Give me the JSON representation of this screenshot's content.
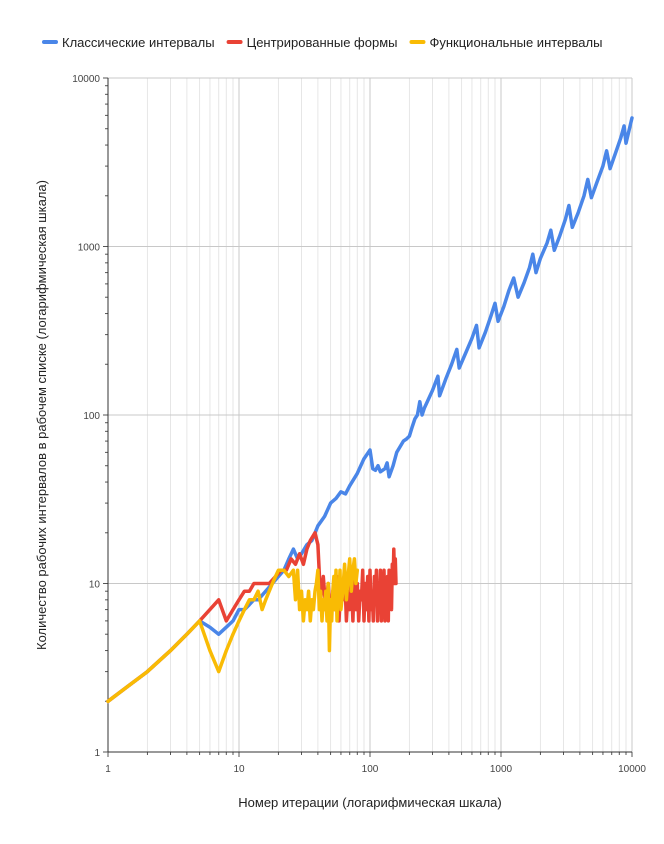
{
  "chart_data": {
    "type": "line",
    "title": "",
    "xlabel": "Номер итерации (логарифмическая шкала)",
    "ylabel": "Количество рабочих интервалов в рабочем списке (логарифмическая шкала)",
    "x_scale": "log",
    "y_scale": "log",
    "xlim": [
      1,
      10000
    ],
    "ylim": [
      1,
      10000
    ],
    "x_ticks": [
      "1",
      "10",
      "100",
      "1000",
      "10000"
    ],
    "y_ticks": [
      "1",
      "10",
      "100",
      "1000",
      "10000"
    ],
    "grid": true,
    "legend_position": "top",
    "series": [
      {
        "name": "Классические интервалы",
        "color": "#4a86e8",
        "points": [
          [
            1,
            2
          ],
          [
            2,
            3
          ],
          [
            3,
            4
          ],
          [
            4,
            5
          ],
          [
            5,
            6
          ],
          [
            6,
            5.5
          ],
          [
            7,
            5
          ],
          [
            8,
            5.5
          ],
          [
            9,
            6
          ],
          [
            10,
            7
          ],
          [
            11,
            7
          ],
          [
            12,
            7.5
          ],
          [
            13,
            8
          ],
          [
            14,
            8
          ],
          [
            16,
            9
          ],
          [
            18,
            10
          ],
          [
            20,
            11
          ],
          [
            22,
            12
          ],
          [
            24,
            14
          ],
          [
            26,
            16
          ],
          [
            28,
            14
          ],
          [
            30,
            15
          ],
          [
            33,
            17
          ],
          [
            36,
            18
          ],
          [
            40,
            22
          ],
          [
            45,
            25
          ],
          [
            50,
            30
          ],
          [
            55,
            32
          ],
          [
            60,
            35
          ],
          [
            65,
            34
          ],
          [
            70,
            38
          ],
          [
            80,
            45
          ],
          [
            90,
            55
          ],
          [
            100,
            62
          ],
          [
            105,
            48
          ],
          [
            110,
            47
          ],
          [
            115,
            50
          ],
          [
            120,
            46
          ],
          [
            130,
            48
          ],
          [
            135,
            52
          ],
          [
            140,
            43
          ],
          [
            150,
            50
          ],
          [
            160,
            60
          ],
          [
            170,
            65
          ],
          [
            180,
            70
          ],
          [
            190,
            72
          ],
          [
            200,
            75
          ],
          [
            210,
            85
          ],
          [
            220,
            95
          ],
          [
            230,
            100
          ],
          [
            240,
            120
          ],
          [
            250,
            100
          ],
          [
            260,
            110
          ],
          [
            300,
            140
          ],
          [
            330,
            170
          ],
          [
            340,
            130
          ],
          [
            380,
            165
          ],
          [
            420,
            200
          ],
          [
            460,
            245
          ],
          [
            480,
            190
          ],
          [
            540,
            235
          ],
          [
            600,
            285
          ],
          [
            650,
            340
          ],
          [
            680,
            250
          ],
          [
            760,
            310
          ],
          [
            840,
            390
          ],
          [
            900,
            460
          ],
          [
            950,
            360
          ],
          [
            1050,
            440
          ],
          [
            1150,
            550
          ],
          [
            1250,
            650
          ],
          [
            1350,
            500
          ],
          [
            1500,
            610
          ],
          [
            1650,
            750
          ],
          [
            1750,
            900
          ],
          [
            1850,
            700
          ],
          [
            2000,
            850
          ],
          [
            2250,
            1050
          ],
          [
            2400,
            1250
          ],
          [
            2550,
            950
          ],
          [
            2800,
            1150
          ],
          [
            3100,
            1450
          ],
          [
            3300,
            1750
          ],
          [
            3500,
            1300
          ],
          [
            3900,
            1600
          ],
          [
            4300,
            2000
          ],
          [
            4600,
            2500
          ],
          [
            4900,
            1950
          ],
          [
            5400,
            2400
          ],
          [
            6000,
            3000
          ],
          [
            6400,
            3700
          ],
          [
            6800,
            2900
          ],
          [
            7500,
            3600
          ],
          [
            8200,
            4400
          ],
          [
            8700,
            5200
          ],
          [
            9000,
            4100
          ],
          [
            10000,
            5800
          ]
        ]
      },
      {
        "name": "Центрированные формы",
        "color": "#e94235",
        "points": [
          [
            1,
            2
          ],
          [
            2,
            3
          ],
          [
            3,
            4
          ],
          [
            4,
            5
          ],
          [
            5,
            6
          ],
          [
            6,
            7
          ],
          [
            7,
            8
          ],
          [
            8,
            6
          ],
          [
            9,
            7
          ],
          [
            10,
            8
          ],
          [
            11,
            9
          ],
          [
            12,
            9
          ],
          [
            13,
            10
          ],
          [
            15,
            10
          ],
          [
            17,
            10
          ],
          [
            19,
            11
          ],
          [
            21,
            12
          ],
          [
            23,
            12
          ],
          [
            25,
            14
          ],
          [
            27,
            13
          ],
          [
            29,
            15
          ],
          [
            31,
            13
          ],
          [
            33,
            16
          ],
          [
            35,
            18
          ],
          [
            38,
            20
          ],
          [
            40,
            17
          ],
          [
            42,
            8
          ],
          [
            44,
            11
          ],
          [
            46,
            7
          ],
          [
            48,
            10
          ],
          [
            50,
            6
          ],
          [
            52,
            9
          ],
          [
            54,
            7
          ],
          [
            56,
            11
          ],
          [
            58,
            6
          ],
          [
            60,
            10
          ],
          [
            62,
            8
          ],
          [
            64,
            12
          ],
          [
            66,
            6
          ],
          [
            68,
            9
          ],
          [
            70,
            7
          ],
          [
            72,
            11
          ],
          [
            74,
            6
          ],
          [
            76,
            12
          ],
          [
            78,
            7
          ],
          [
            80,
            10
          ],
          [
            82,
            6
          ],
          [
            84,
            9
          ],
          [
            86,
            8
          ],
          [
            88,
            12
          ],
          [
            90,
            6
          ],
          [
            92,
            10
          ],
          [
            94,
            7
          ],
          [
            96,
            11
          ],
          [
            98,
            6
          ],
          [
            100,
            12
          ],
          [
            102,
            7
          ],
          [
            104,
            9
          ],
          [
            106,
            6
          ],
          [
            108,
            11
          ],
          [
            110,
            8
          ],
          [
            112,
            12
          ],
          [
            114,
            6
          ],
          [
            116,
            10
          ],
          [
            118,
            7
          ],
          [
            120,
            12
          ],
          [
            122,
            6
          ],
          [
            124,
            9
          ],
          [
            126,
            8
          ],
          [
            128,
            12
          ],
          [
            130,
            6
          ],
          [
            132,
            10
          ],
          [
            134,
            7
          ],
          [
            136,
            11
          ],
          [
            138,
            6
          ],
          [
            140,
            12
          ],
          [
            142,
            8
          ],
          [
            144,
            9
          ],
          [
            146,
            7
          ],
          [
            148,
            13
          ],
          [
            150,
            10
          ],
          [
            152,
            16
          ],
          [
            154,
            10
          ],
          [
            156,
            14
          ],
          [
            158,
            10
          ]
        ]
      },
      {
        "name": "Функциональные интервалы",
        "color": "#f9bb04",
        "points": [
          [
            1,
            2
          ],
          [
            2,
            3
          ],
          [
            3,
            4
          ],
          [
            4,
            5
          ],
          [
            5,
            6
          ],
          [
            6,
            4
          ],
          [
            7,
            3
          ],
          [
            8,
            4
          ],
          [
            9,
            5
          ],
          [
            10,
            6
          ],
          [
            11,
            7
          ],
          [
            12,
            8
          ],
          [
            13,
            8
          ],
          [
            14,
            9
          ],
          [
            15,
            7
          ],
          [
            16,
            8
          ],
          [
            17,
            9
          ],
          [
            18,
            10
          ],
          [
            19,
            11
          ],
          [
            20,
            12
          ],
          [
            22,
            12
          ],
          [
            24,
            11
          ],
          [
            26,
            12
          ],
          [
            27,
            8
          ],
          [
            28,
            12
          ],
          [
            29,
            7
          ],
          [
            30,
            9
          ],
          [
            31,
            6
          ],
          [
            32,
            8
          ],
          [
            33,
            7
          ],
          [
            34,
            9
          ],
          [
            35,
            6
          ],
          [
            36,
            8
          ],
          [
            37,
            7
          ],
          [
            38,
            9
          ],
          [
            39,
            10
          ],
          [
            40,
            12
          ],
          [
            41,
            7
          ],
          [
            42,
            9
          ],
          [
            43,
            6
          ],
          [
            44,
            8
          ],
          [
            45,
            7
          ],
          [
            46,
            9
          ],
          [
            47,
            6
          ],
          [
            48,
            10
          ],
          [
            49,
            4
          ],
          [
            50,
            8
          ],
          [
            51,
            6
          ],
          [
            52,
            9
          ],
          [
            53,
            11
          ],
          [
            54,
            7
          ],
          [
            55,
            12
          ],
          [
            56,
            6
          ],
          [
            57,
            10
          ],
          [
            58,
            8
          ],
          [
            59,
            12
          ],
          [
            60,
            7
          ],
          [
            62,
            9
          ],
          [
            64,
            13
          ],
          [
            66,
            8
          ],
          [
            68,
            11
          ],
          [
            70,
            14
          ],
          [
            72,
            9
          ],
          [
            74,
            12
          ],
          [
            76,
            14
          ],
          [
            78,
            10
          ],
          [
            80,
            12
          ]
        ]
      }
    ]
  }
}
